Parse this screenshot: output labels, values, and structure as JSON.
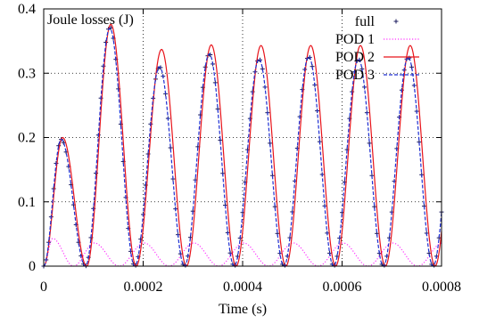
{
  "chart_data": {
    "type": "line",
    "title": "Joule losses (J)",
    "xlabel": "Time (s)",
    "ylabel": "",
    "xlim": [
      0,
      0.0008
    ],
    "ylim": [
      0,
      0.4
    ],
    "x_ticks": [
      0,
      0.0002,
      0.0004,
      0.0006,
      0.0008
    ],
    "x_tick_labels": [
      "0",
      "0.0002",
      "0.0004",
      "0.0006",
      "0.0008"
    ],
    "y_ticks": [
      0,
      0.1,
      0.2,
      0.3,
      0.4
    ],
    "y_tick_labels": [
      "0",
      "0.1",
      "0.2",
      "0.3",
      "0.4"
    ],
    "grid": true,
    "grid_style": "dotted",
    "legend_position": "top-right",
    "series": [
      {
        "name": "full",
        "style": "points",
        "color": "#1a1a5e",
        "marker": "plus",
        "sample_every": 5e-06,
        "peaks": [
          {
            "t": 3.5e-05,
            "v": 0.197
          },
          {
            "t": 0.000133,
            "v": 0.372
          },
          {
            "t": 0.000233,
            "v": 0.31
          },
          {
            "t": 0.000333,
            "v": 0.33
          },
          {
            "t": 0.000433,
            "v": 0.322
          },
          {
            "t": 0.000533,
            "v": 0.326
          },
          {
            "t": 0.000633,
            "v": 0.322
          },
          {
            "t": 0.000733,
            "v": 0.325
          }
        ]
      },
      {
        "name": "POD 1",
        "style": "dotted",
        "color": "#ff33ff",
        "peaks": [
          {
            "t": 1.8e-05,
            "v": 0.043
          },
          {
            "t": 0.000102,
            "v": 0.036
          },
          {
            "t": 0.000202,
            "v": 0.036
          },
          {
            "t": 0.000302,
            "v": 0.036
          },
          {
            "t": 0.000402,
            "v": 0.036
          },
          {
            "t": 0.000502,
            "v": 0.036
          },
          {
            "t": 0.000602,
            "v": 0.036
          },
          {
            "t": 0.000702,
            "v": 0.036
          }
        ]
      },
      {
        "name": "POD 2",
        "style": "solid",
        "color": "#e8141b",
        "peaks": [
          {
            "t": 3.8e-05,
            "v": 0.2
          },
          {
            "t": 0.000135,
            "v": 0.376
          },
          {
            "t": 0.000237,
            "v": 0.337
          },
          {
            "t": 0.000337,
            "v": 0.344
          },
          {
            "t": 0.000437,
            "v": 0.343
          },
          {
            "t": 0.000537,
            "v": 0.343
          },
          {
            "t": 0.000637,
            "v": 0.343
          },
          {
            "t": 0.000737,
            "v": 0.343
          }
        ]
      },
      {
        "name": "POD 3",
        "style": "dashed",
        "color": "#1f2fd1",
        "peaks": [
          {
            "t": 3.5e-05,
            "v": 0.197
          },
          {
            "t": 0.000133,
            "v": 0.37
          },
          {
            "t": 0.000233,
            "v": 0.31
          },
          {
            "t": 0.000333,
            "v": 0.33
          },
          {
            "t": 0.000433,
            "v": 0.322
          },
          {
            "t": 0.000533,
            "v": 0.326
          },
          {
            "t": 0.000633,
            "v": 0.322
          },
          {
            "t": 0.000733,
            "v": 0.325
          }
        ]
      }
    ]
  }
}
